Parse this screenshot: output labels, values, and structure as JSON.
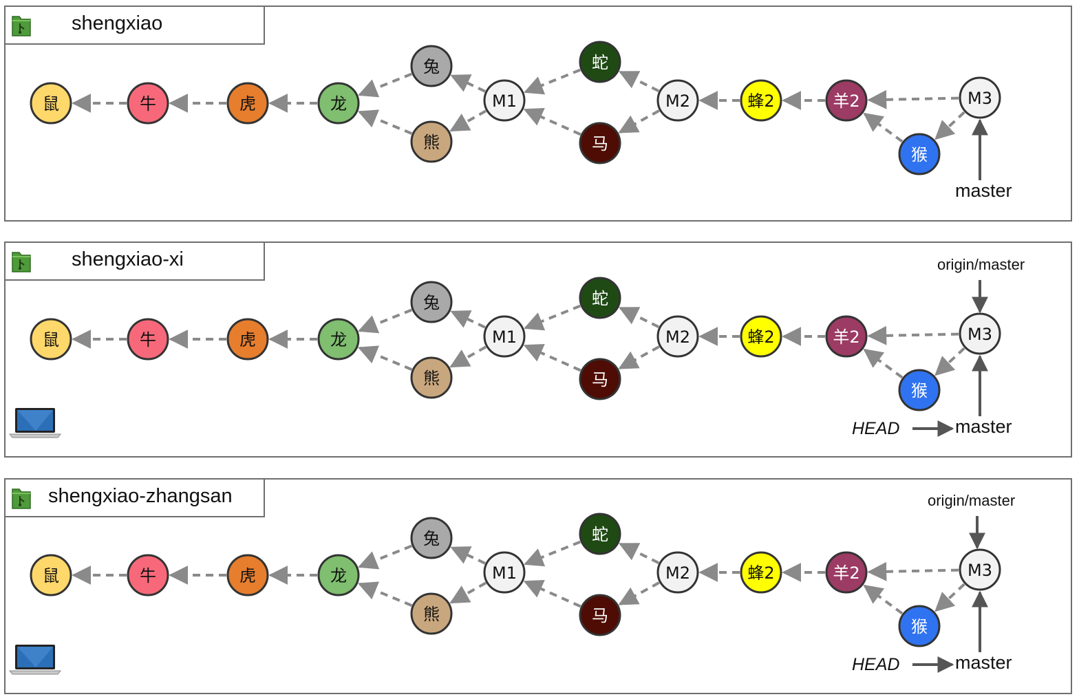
{
  "colors": {
    "edge": "#8a8a8a",
    "node_stroke": "#333333",
    "ref_arrow": "#555555",
    "panel_border": "#6e6e6e"
  },
  "icons": {
    "repo": "git-repo-folder-icon",
    "computer": "laptop-icon"
  },
  "panels": [
    {
      "id": "origin",
      "name": "shengxiao",
      "has_laptop": false,
      "refs": {
        "master": "master",
        "origin_master": "",
        "head": ""
      }
    },
    {
      "id": "xi",
      "name": "shengxiao-xi",
      "has_laptop": true,
      "refs": {
        "master": "master",
        "origin_master": "origin/master",
        "head": "HEAD"
      }
    },
    {
      "id": "zhangsan",
      "name": "shengxiao-zhangsan",
      "has_laptop": true,
      "refs": {
        "master": "master",
        "origin_master": "origin/master",
        "head": "HEAD"
      }
    }
  ],
  "commits": [
    {
      "id": "shu",
      "label": "鼠",
      "fill": "#ffd86b",
      "text": "#111111"
    },
    {
      "id": "niu",
      "label": "牛",
      "fill": "#f7697a",
      "text": "#111111"
    },
    {
      "id": "hu",
      "label": "虎",
      "fill": "#e67e2e",
      "text": "#111111"
    },
    {
      "id": "long",
      "label": "龙",
      "fill": "#7fbf6f",
      "text": "#111111"
    },
    {
      "id": "tu",
      "label": "兔",
      "fill": "#a9a9a9",
      "text": "#111111"
    },
    {
      "id": "xiong",
      "label": "熊",
      "fill": "#c9a77e",
      "text": "#111111"
    },
    {
      "id": "m1",
      "label": "M1",
      "fill": "#f2f2f2",
      "text": "#111111"
    },
    {
      "id": "she",
      "label": "蛇",
      "fill": "#1f4a14",
      "text": "#ffffff"
    },
    {
      "id": "ma",
      "label": "马",
      "fill": "#4e0c04",
      "text": "#ffffff"
    },
    {
      "id": "m2",
      "label": "M2",
      "fill": "#f2f2f2",
      "text": "#111111"
    },
    {
      "id": "feng2",
      "label": "蜂2",
      "fill": "#ffff00",
      "text": "#111111"
    },
    {
      "id": "yang2",
      "label": "羊2",
      "fill": "#9c3b64",
      "text": "#ffffff"
    },
    {
      "id": "hou",
      "label": "猴",
      "fill": "#2f73f0",
      "text": "#ffffff"
    },
    {
      "id": "m3",
      "label": "M3",
      "fill": "#f2f2f2",
      "text": "#111111"
    }
  ],
  "edges": [
    [
      "niu",
      "shu"
    ],
    [
      "hu",
      "niu"
    ],
    [
      "long",
      "hu"
    ],
    [
      "tu",
      "long"
    ],
    [
      "xiong",
      "long"
    ],
    [
      "m1",
      "tu"
    ],
    [
      "m1",
      "xiong"
    ],
    [
      "she",
      "m1"
    ],
    [
      "ma",
      "m1"
    ],
    [
      "m2",
      "she"
    ],
    [
      "m2",
      "ma"
    ],
    [
      "feng2",
      "m2"
    ],
    [
      "yang2",
      "feng2"
    ],
    [
      "hou",
      "yang2"
    ],
    [
      "m3",
      "yang2"
    ],
    [
      "m3",
      "hou"
    ]
  ]
}
